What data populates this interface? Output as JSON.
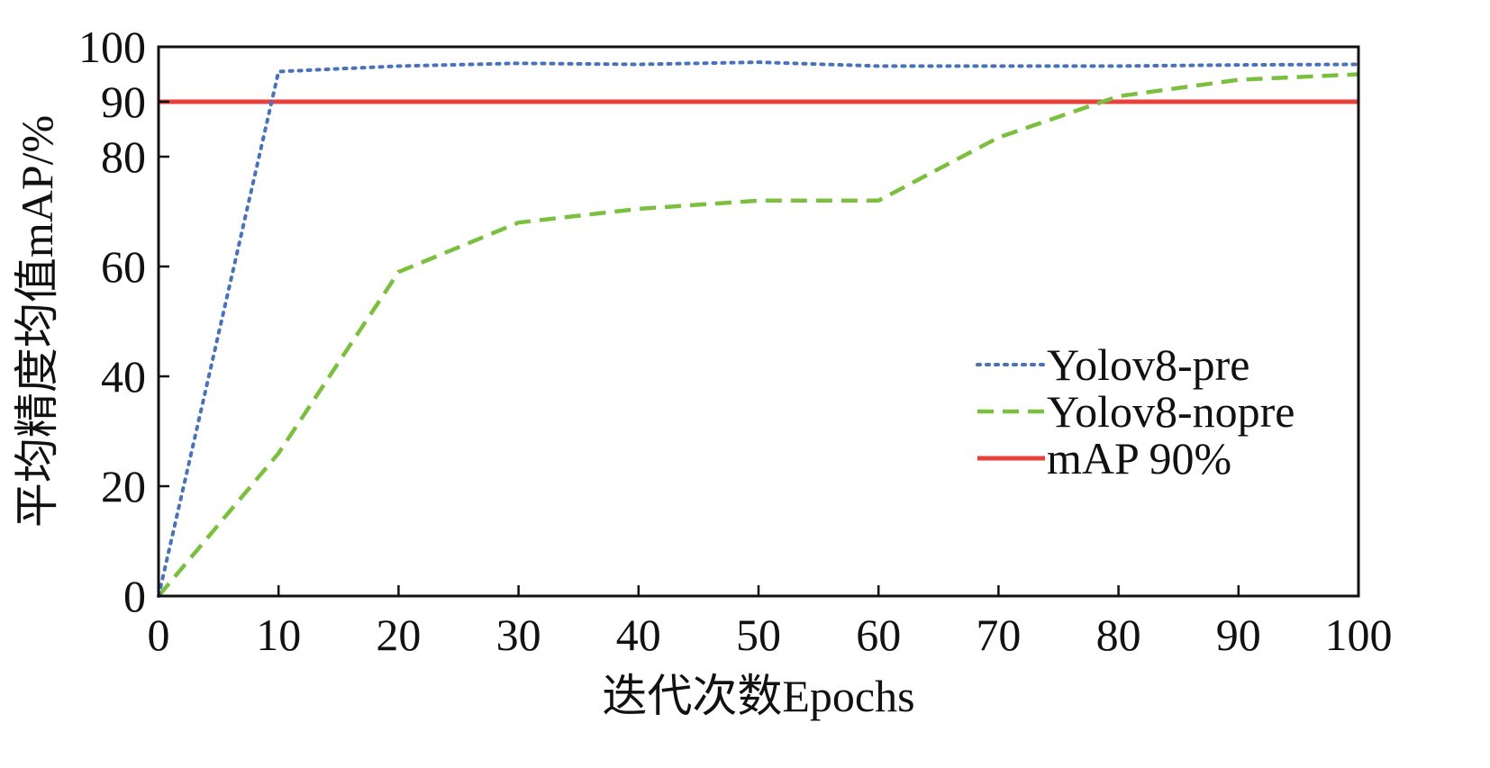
{
  "chart_data": {
    "type": "line",
    "xlabel": "迭代次数Epochs",
    "ylabel": "平均精度均值mAP/%",
    "xlim": [
      0,
      100
    ],
    "ylim": [
      0,
      100
    ],
    "xticks": [
      0,
      10,
      20,
      30,
      40,
      50,
      60,
      70,
      80,
      90,
      100
    ],
    "yticks": [
      0,
      20,
      40,
      60,
      80,
      90,
      100
    ],
    "grid": false,
    "legend_position": "right",
    "series": [
      {
        "name": "Yolov8-pre",
        "color": "#4a72b8",
        "line_style": "dotted",
        "x": [
          0,
          10,
          20,
          30,
          40,
          50,
          60,
          70,
          80,
          90,
          100
        ],
        "y": [
          0,
          95.5,
          96.5,
          97.0,
          96.8,
          97.2,
          96.5,
          96.5,
          96.5,
          96.7,
          96.8
        ]
      },
      {
        "name": "Yolov8-nopre",
        "color": "#7bbf3f",
        "line_style": "dashed",
        "x": [
          0,
          10,
          20,
          30,
          40,
          50,
          60,
          70,
          80,
          90,
          100
        ],
        "y": [
          0,
          26,
          59,
          68,
          70.5,
          72,
          72,
          83.5,
          91,
          94,
          95
        ]
      },
      {
        "name": "mAP 90%",
        "color": "#e8413c",
        "line_style": "solid",
        "x": [
          0,
          100
        ],
        "y": [
          90,
          90
        ]
      }
    ]
  }
}
